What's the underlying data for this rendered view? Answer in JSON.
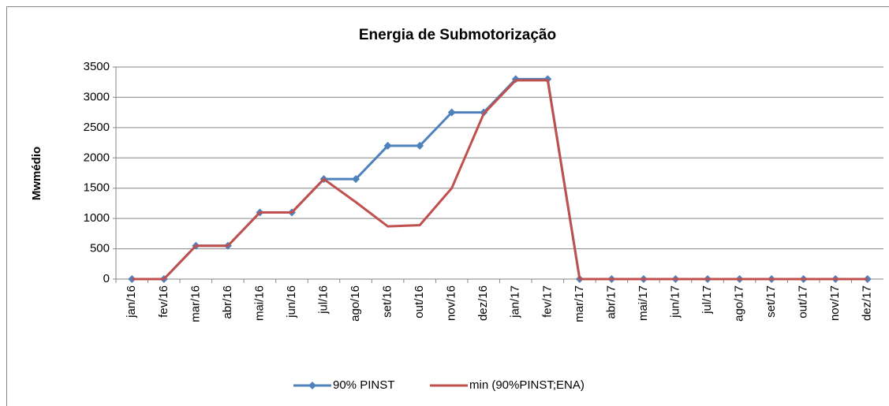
{
  "chart_data": {
    "type": "line",
    "title": "Energia de Submotorização",
    "y_label": "Mwmédio",
    "categories": [
      "jan/16",
      "fev/16",
      "mar/16",
      "abr/16",
      "mai/16",
      "jun/16",
      "jul/16",
      "ago/16",
      "set/16",
      "out/16",
      "nov/16",
      "dez/16",
      "jan/17",
      "fev/17",
      "mar/17",
      "abr/17",
      "mai/17",
      "jun/17",
      "jul/17",
      "ago/17",
      "set/17",
      "out/17",
      "nov/17",
      "dez/17"
    ],
    "series": [
      {
        "name": "90% PINST",
        "color": "#4f81bd",
        "marker": "diamond",
        "values": [
          0,
          0,
          550,
          550,
          1100,
          1100,
          1650,
          1650,
          2200,
          2200,
          2750,
          2750,
          3300,
          3300,
          0,
          0,
          0,
          0,
          0,
          0,
          0,
          0,
          0,
          0
        ]
      },
      {
        "name": "min (90%PINST;ENA)",
        "color": "#c0504d",
        "values": [
          0,
          0,
          550,
          550,
          1100,
          1100,
          1650,
          1270,
          870,
          890,
          1500,
          2730,
          3280,
          3280,
          0,
          0,
          0,
          0,
          0,
          0,
          0,
          0,
          0,
          0
        ]
      }
    ],
    "ylim": [
      0,
      3500
    ],
    "yticks": [
      0,
      500,
      1000,
      1500,
      2000,
      2500,
      3000,
      3500
    ],
    "grid": true,
    "legend": "bottom"
  }
}
